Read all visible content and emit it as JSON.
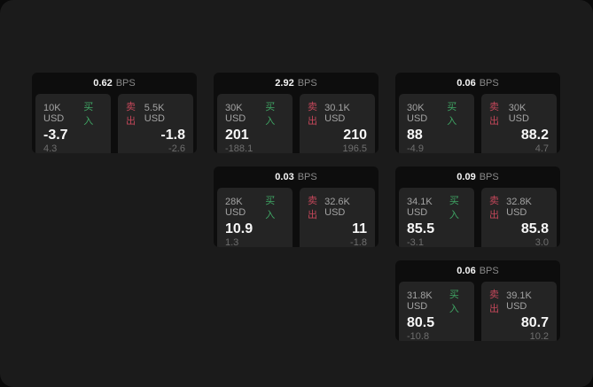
{
  "labels": {
    "bps_unit": "BPS",
    "buy": "买入",
    "sell": "卖出"
  },
  "colors": {
    "buy": "#3fa564",
    "sell": "#c4475a",
    "card_bg": "#0d0d0d",
    "panel_bg": "#242424",
    "window_bg": "#1b1b1b"
  },
  "cards": [
    {
      "bps": "0.62",
      "buy": {
        "amount": "10K USD",
        "price": "-3.7",
        "sub": "4.3"
      },
      "sell": {
        "amount": "5.5K USD",
        "price": "-1.8",
        "sub": "-2.6"
      }
    },
    {
      "bps": "2.92",
      "buy": {
        "amount": "30K USD",
        "price": "201",
        "sub": "-188.1"
      },
      "sell": {
        "amount": "30.1K USD",
        "price": "210",
        "sub": "196.5"
      }
    },
    {
      "bps": "0.06",
      "buy": {
        "amount": "30K USD",
        "price": "88",
        "sub": "-4.9"
      },
      "sell": {
        "amount": "30K USD",
        "price": "88.2",
        "sub": "4.7"
      }
    },
    {
      "bps": "0.03",
      "buy": {
        "amount": "28K USD",
        "price": "10.9",
        "sub": "1.3"
      },
      "sell": {
        "amount": "32.6K USD",
        "price": "11",
        "sub": "-1.8"
      }
    },
    {
      "bps": "0.09",
      "buy": {
        "amount": "34.1K USD",
        "price": "85.5",
        "sub": "-3.1"
      },
      "sell": {
        "amount": "32.8K USD",
        "price": "85.8",
        "sub": "3.0"
      }
    },
    {
      "bps": "0.06",
      "buy": {
        "amount": "31.8K USD",
        "price": "80.5",
        "sub": "-10.8"
      },
      "sell": {
        "amount": "39.1K USD",
        "price": "80.7",
        "sub": "10.2"
      }
    }
  ]
}
